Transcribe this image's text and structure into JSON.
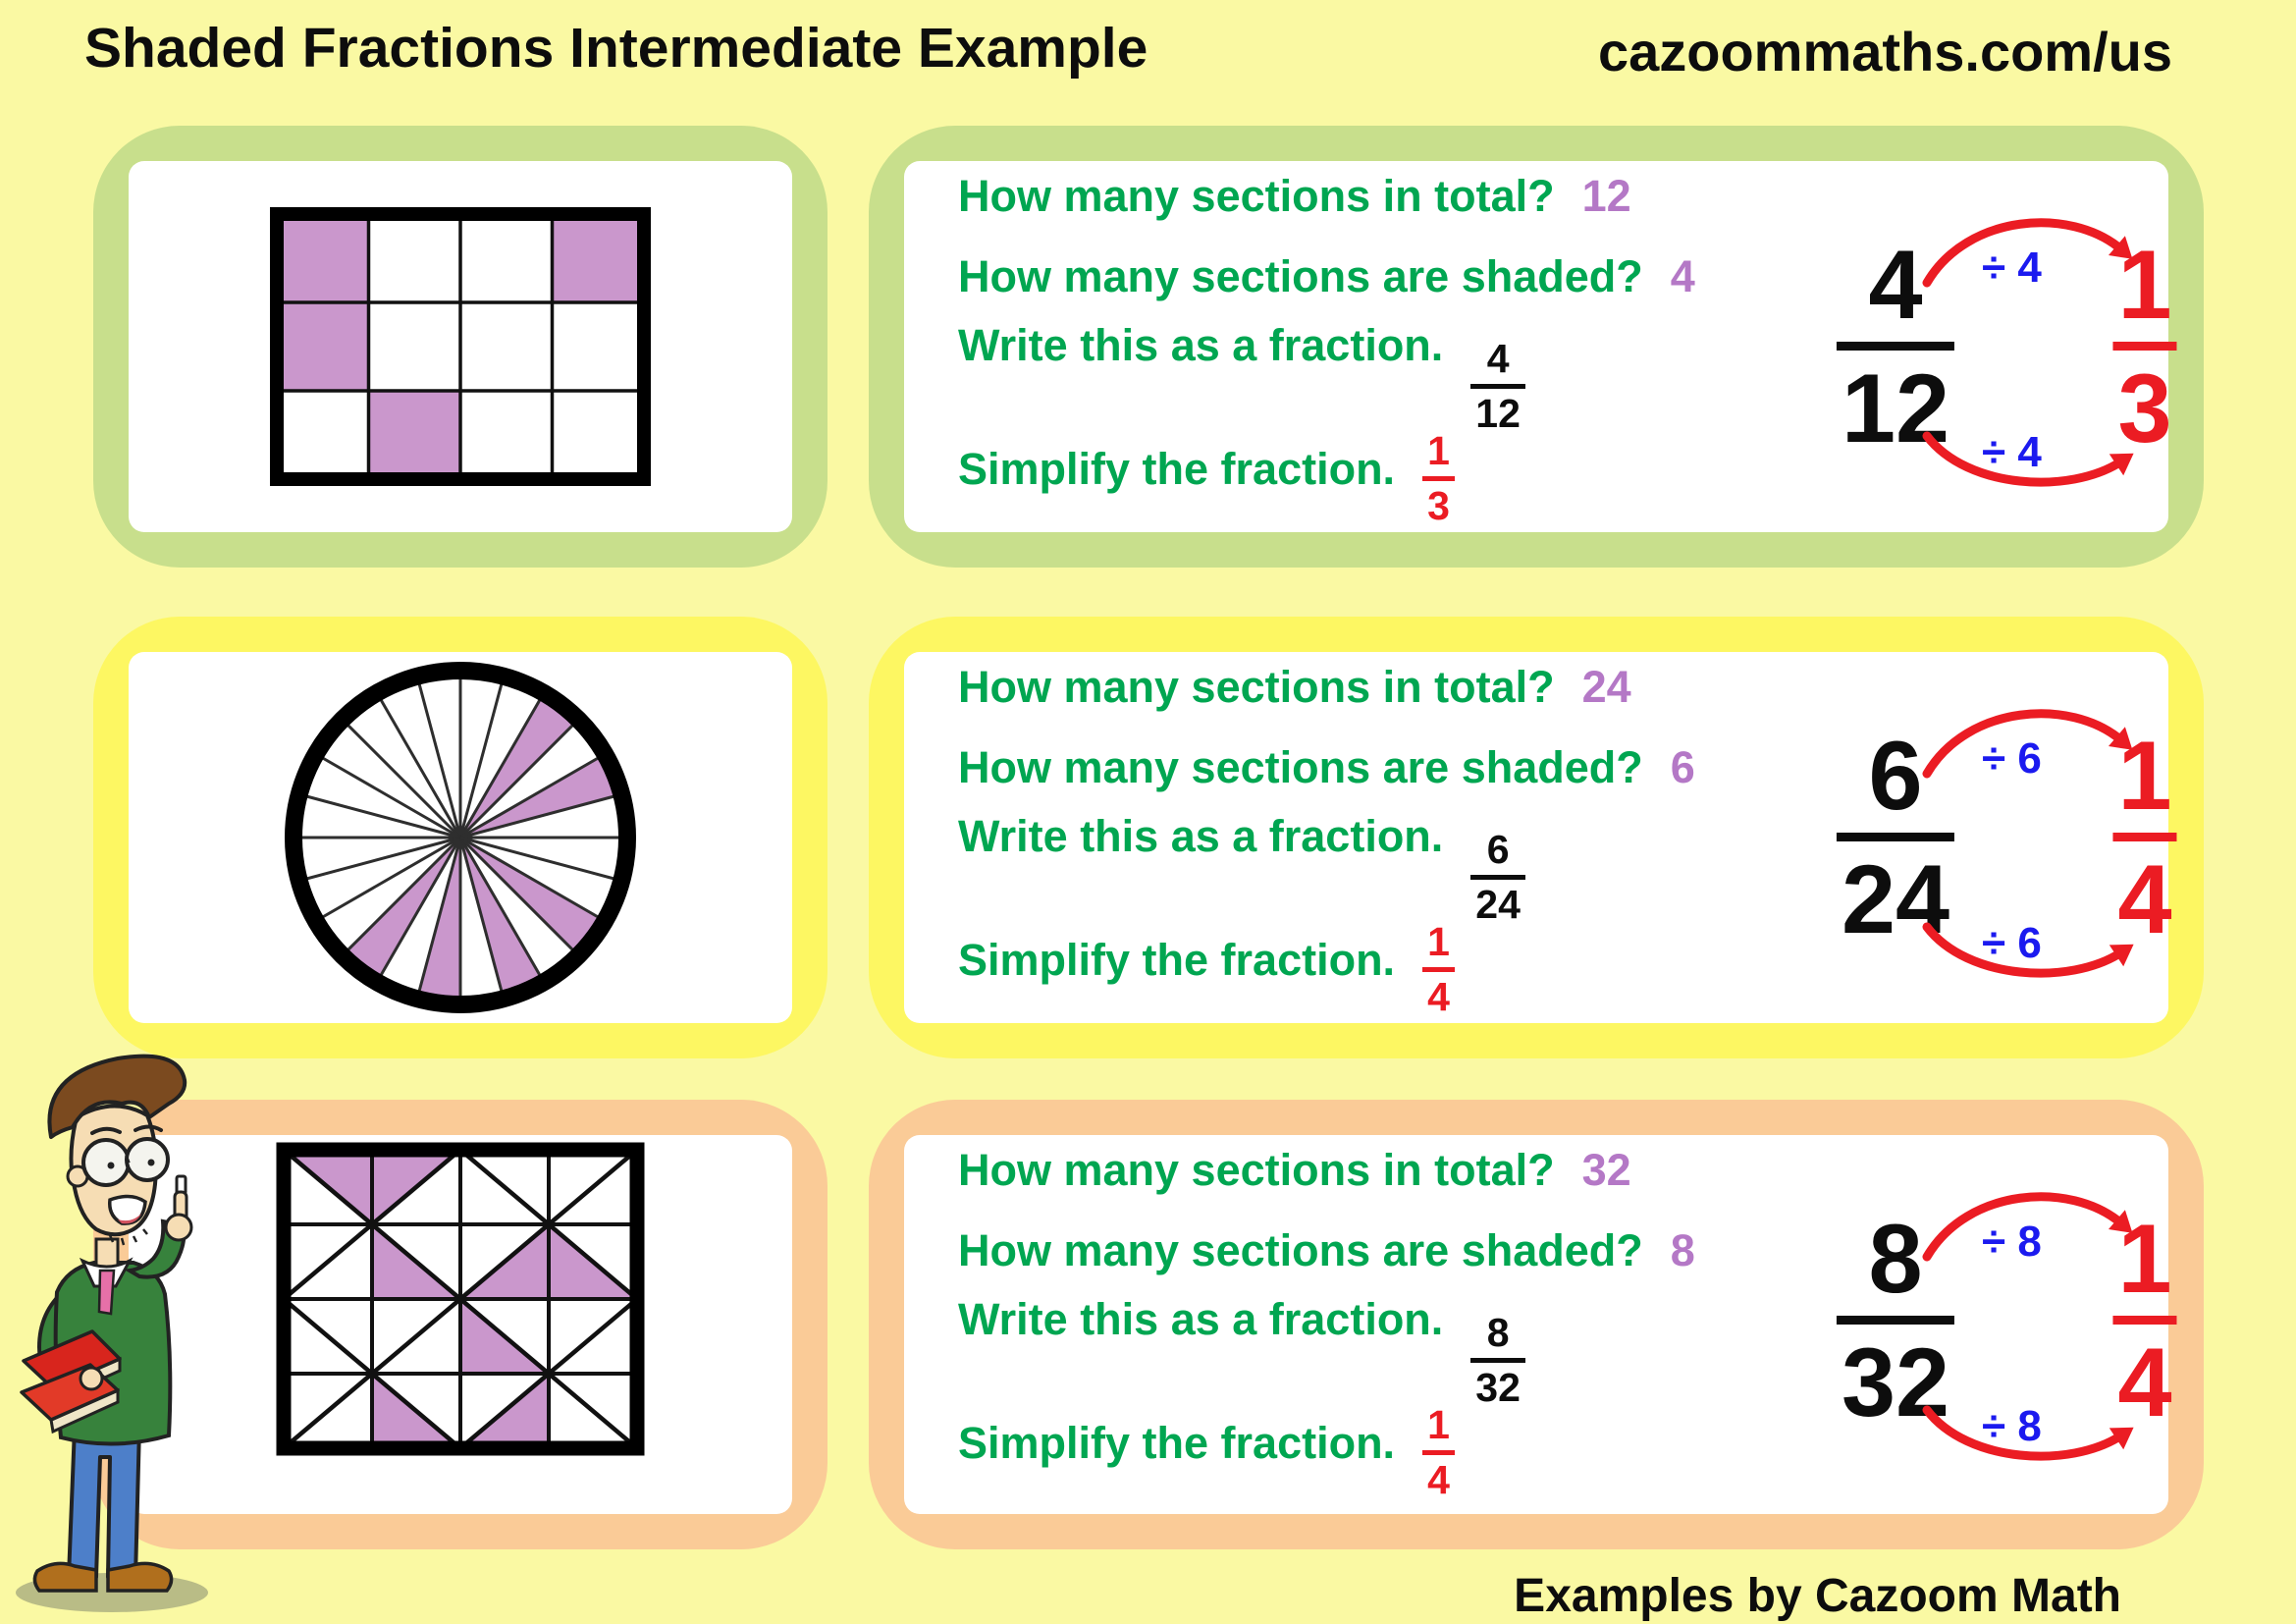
{
  "header": {
    "title": "Shaded Fractions Intermediate Example",
    "website": "cazoommaths.com/us"
  },
  "footer": {
    "credit": "Examples by Cazoom Math"
  },
  "question_labels": {
    "total": "How many sections in total?",
    "shaded": "How many sections are shaded?",
    "write": "Write this as a fraction.",
    "simplify": "Simplify the fraction."
  },
  "colors": {
    "background": "#FAF9A3",
    "shade_fill": "#CA97CC",
    "question_green": "#00A651",
    "answer_purple": "#B478C6",
    "accent_red": "#EB1C23",
    "divisor_blue": "#1B1AEF",
    "text_black": "#0D0D0D",
    "row_accents": [
      "#C8DF8C",
      "#FDF762",
      "#FACB97"
    ]
  },
  "rows": [
    {
      "shape_name": "rectangle-grid",
      "answers": {
        "total": "12",
        "shaded": "4"
      },
      "fraction": {
        "num": "4",
        "den": "12"
      },
      "simplified": {
        "num": "1",
        "den": "3"
      },
      "divisor": "÷ 4",
      "shape": {
        "type": "grid",
        "cols": 4,
        "rows": 3,
        "shaded_cells": [
          [
            0,
            0
          ],
          [
            0,
            3
          ],
          [
            1,
            0
          ],
          [
            2,
            1
          ]
        ]
      }
    },
    {
      "shape_name": "circle-sectors",
      "answers": {
        "total": "24",
        "shaded": "6"
      },
      "fraction": {
        "num": "6",
        "den": "24"
      },
      "simplified": {
        "num": "1",
        "den": "4"
      },
      "divisor": "÷ 6",
      "shape": {
        "type": "circle",
        "sectors": 24,
        "shaded_sectors": [
          1,
          3,
          15,
          17,
          19,
          21
        ]
      }
    },
    {
      "shape_name": "triangle-grid",
      "answers": {
        "total": "32",
        "shaded": "8"
      },
      "fraction": {
        "num": "8",
        "den": "32"
      },
      "simplified": {
        "num": "1",
        "den": "4"
      },
      "divisor": "÷ 8",
      "shape": {
        "type": "triangle-grid",
        "cols": 4,
        "rows": 4,
        "shaded_triangles": [
          {
            "r": 0,
            "c": 0,
            "tri": "UR"
          },
          {
            "r": 0,
            "c": 1,
            "tri": "UL"
          },
          {
            "r": 1,
            "c": 1,
            "tri": "LL"
          },
          {
            "r": 1,
            "c": 2,
            "tri": "LR"
          },
          {
            "r": 1,
            "c": 3,
            "tri": "LL"
          },
          {
            "r": 2,
            "c": 2,
            "tri": "LL"
          },
          {
            "r": 3,
            "c": 1,
            "tri": "LL"
          },
          {
            "r": 3,
            "c": 2,
            "tri": "LR"
          }
        ]
      }
    }
  ]
}
